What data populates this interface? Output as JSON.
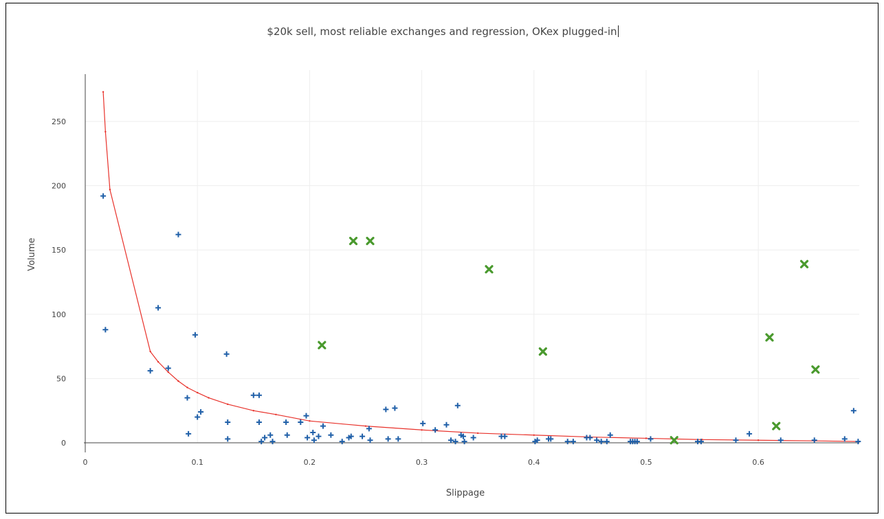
{
  "chart_data": {
    "type": "scatter",
    "title": "$20k sell, most reliable exchanges and regression, OKex plugged-in",
    "xlabel": "Slippage",
    "ylabel": "Volume",
    "xlim": [
      0,
      0.69
    ],
    "ylim": [
      0,
      290
    ],
    "x_ticks": [
      0,
      0.1,
      0.2,
      0.3,
      0.4,
      0.5,
      0.6
    ],
    "x_tick_labels": [
      "0",
      "0.1",
      "0.2",
      "0.3",
      "0.4",
      "0.5",
      "0.6"
    ],
    "y_ticks": [
      0,
      50,
      100,
      150,
      200,
      250
    ],
    "y_tick_labels": [
      "0",
      "50",
      "100",
      "150",
      "200",
      "250"
    ],
    "grid": true,
    "legend": "none",
    "series": [
      {
        "marker": "plus",
        "color": "#1f5fa8",
        "x": [
          0.016,
          0.018,
          0.058,
          0.065,
          0.074,
          0.083,
          0.091,
          0.092,
          0.098,
          0.1,
          0.103,
          0.126,
          0.127,
          0.127,
          0.15,
          0.155,
          0.155,
          0.157,
          0.16,
          0.165,
          0.167,
          0.179,
          0.18,
          0.192,
          0.197,
          0.198,
          0.203,
          0.204,
          0.208,
          0.212,
          0.219,
          0.229,
          0.235,
          0.237,
          0.247,
          0.253,
          0.254,
          0.268,
          0.27,
          0.276,
          0.279,
          0.301,
          0.312,
          0.322,
          0.326,
          0.33,
          0.332,
          0.335,
          0.337,
          0.338,
          0.346,
          0.371,
          0.374,
          0.401,
          0.403,
          0.413,
          0.415,
          0.43,
          0.435,
          0.447,
          0.45,
          0.456,
          0.46,
          0.465,
          0.468,
          0.486,
          0.488,
          0.49,
          0.492,
          0.504,
          0.546,
          0.549,
          0.58,
          0.592,
          0.62,
          0.65,
          0.677,
          0.685,
          0.689
        ],
        "y": [
          192,
          88,
          56,
          105,
          58,
          162,
          35,
          7,
          84,
          20,
          24,
          69,
          16,
          3,
          37,
          37,
          16,
          1,
          4,
          6,
          1,
          16,
          6,
          16,
          21,
          4,
          8,
          2,
          5,
          13,
          6,
          1,
          4,
          5,
          5,
          11,
          2,
          26,
          3,
          27,
          3,
          15,
          10,
          14,
          2,
          1,
          29,
          6,
          5,
          1,
          4,
          5,
          5,
          1,
          2,
          3,
          3,
          1,
          1,
          4,
          4,
          2,
          1,
          1,
          6,
          1,
          1,
          1,
          1,
          3,
          1,
          1,
          2,
          7,
          2,
          2,
          3,
          25,
          1
        ]
      },
      {
        "marker": "x-thick",
        "color": "#4a9a2e",
        "x": [
          0.211,
          0.239,
          0.254,
          0.36,
          0.408,
          0.525,
          0.61,
          0.616,
          0.641,
          0.651
        ],
        "y": [
          76,
          157,
          157,
          135,
          71,
          2,
          82,
          13,
          139,
          57
        ]
      },
      {
        "marker": "line",
        "color": "#e8312a",
        "x": [
          0.016,
          0.018,
          0.022,
          0.058,
          0.065,
          0.074,
          0.083,
          0.091,
          0.1,
          0.11,
          0.127,
          0.15,
          0.17,
          0.2,
          0.25,
          0.3,
          0.35,
          0.4,
          0.45,
          0.5,
          0.55,
          0.6,
          0.65,
          0.69
        ],
        "y": [
          273,
          242,
          197,
          71,
          63,
          55,
          48,
          43,
          39,
          35,
          30,
          25,
          22,
          17,
          13,
          10,
          7.5,
          6,
          4.5,
          3.5,
          2.5,
          2,
          1.5,
          1
        ]
      }
    ]
  }
}
